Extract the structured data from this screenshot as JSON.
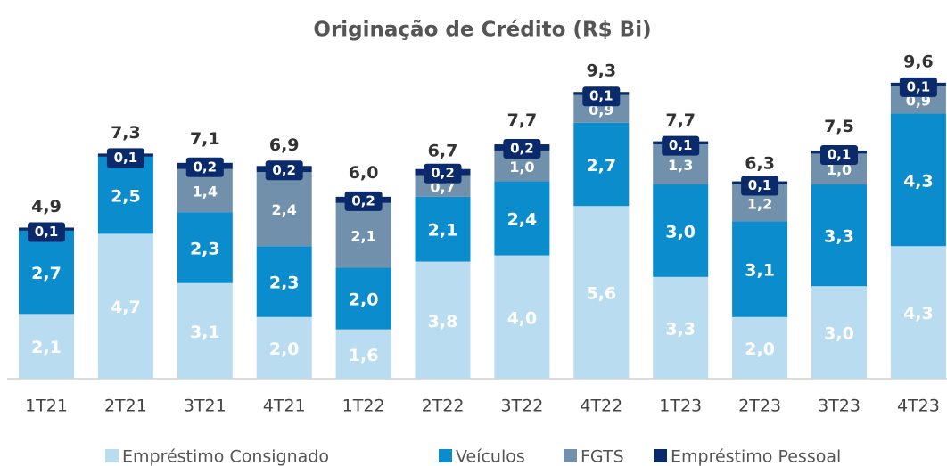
{
  "chart_data": {
    "type": "stacked_bar",
    "title": "Originação de Crédito (R$ Bi)",
    "categories": [
      "1T21",
      "2T21",
      "3T21",
      "4T21",
      "1T22",
      "2T22",
      "3T22",
      "4T22",
      "1T23",
      "2T23",
      "3T23",
      "4T23"
    ],
    "series": [
      {
        "name": "Empréstimo Consignado",
        "color": "#b9dcf1",
        "values": [
          2.1,
          4.7,
          3.1,
          2.0,
          1.6,
          3.8,
          4.0,
          5.6,
          3.3,
          2.0,
          3.0,
          4.3
        ],
        "value_labels": [
          "2,1",
          "4,7",
          "3,1",
          "2,0",
          "1,6",
          "3,8",
          "4,0",
          "5,6",
          "3,3",
          "2,0",
          "3,0",
          "4,3"
        ]
      },
      {
        "name": "Veículos",
        "color": "#0b8dcd",
        "values": [
          2.7,
          2.5,
          2.3,
          2.3,
          2.0,
          2.1,
          2.4,
          2.7,
          3.0,
          3.1,
          3.3,
          4.3
        ],
        "value_labels": [
          "2,7",
          "2,5",
          "2,3",
          "2,3",
          "2,0",
          "2,1",
          "2,4",
          "2,7",
          "3,0",
          "3,1",
          "3,3",
          "4,3"
        ]
      },
      {
        "name": "FGTS",
        "color": "#7090ab",
        "values": [
          null,
          null,
          1.4,
          2.4,
          2.1,
          0.7,
          1.0,
          0.9,
          1.3,
          1.2,
          1.0,
          0.9
        ],
        "value_labels": [
          null,
          null,
          "1,4",
          "2,4",
          "2,1",
          "0,7",
          "1,0",
          "0,9",
          "1,3",
          "1,2",
          "1,0",
          "0,9"
        ]
      },
      {
        "name": "Empréstimo Pessoal",
        "color": "#0a2a6b",
        "values": [
          0.1,
          0.1,
          0.2,
          0.2,
          0.2,
          0.2,
          0.2,
          0.1,
          0.1,
          0.1,
          0.1,
          0.1
        ],
        "value_labels": [
          "0,1",
          "0,1",
          "0,2",
          "0,2",
          "0,2",
          "0,2",
          "0,2",
          "0,1",
          "0,1",
          "0,1",
          "0,1",
          "0,1"
        ]
      }
    ],
    "totals": {
      "values": [
        4.9,
        7.3,
        7.1,
        6.9,
        6.0,
        6.7,
        7.7,
        9.3,
        7.7,
        6.3,
        7.5,
        9.6
      ],
      "value_labels": [
        "4,9",
        "7,3",
        "7,1",
        "6,9",
        "6,0",
        "6,7",
        "7,7",
        "9,3",
        "7,7",
        "6,3",
        "7,5",
        "9,6"
      ]
    },
    "legend": "bottom"
  }
}
